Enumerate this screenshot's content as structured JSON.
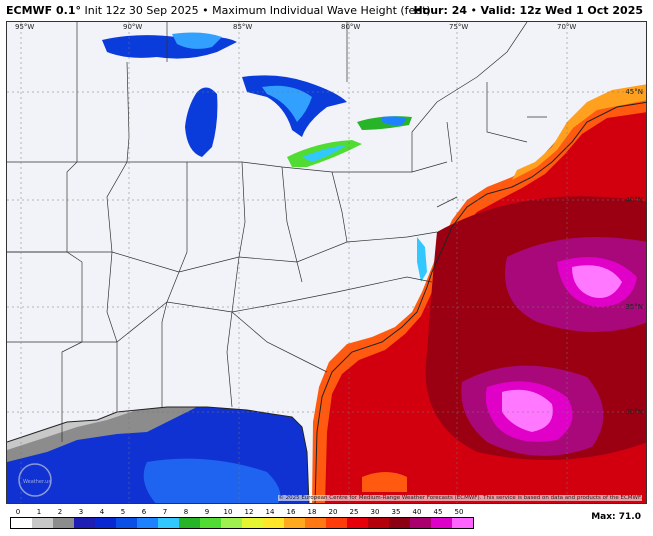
{
  "header": {
    "model": "ECMWF 0.1°",
    "init": "Init 12z 30 Sep 2025",
    "bullet": "•",
    "product": "Maximum Individual Wave Height (feet)",
    "hour_label": "Hour: 24",
    "valid_label": "Valid: 12z Wed 1 Oct 2025"
  },
  "map": {
    "lon_labels": [
      "95°W",
      "90°W",
      "85°W",
      "80°W",
      "75°W",
      "70°W"
    ],
    "lat_labels": [
      "45°N",
      "40°N",
      "35°N",
      "30°N"
    ],
    "copyright": "© 2025 European Centre for Medium-Range Weather Forecasts (ECMWF). This service is based on data and products of the ECMWF.",
    "watermark": "Weather.us"
  },
  "legend": {
    "ticks": [
      "0",
      "1",
      "2",
      "3",
      "4",
      "5",
      "6",
      "7",
      "8",
      "9",
      "10",
      "12",
      "14",
      "16",
      "18",
      "20",
      "25",
      "30",
      "35",
      "40",
      "45",
      "50"
    ],
    "colors": [
      "#ffffff",
      "#c8c8c8",
      "#8c8c8c",
      "#1e1eb4",
      "#0a28d2",
      "#0a50e6",
      "#1e82ff",
      "#32c8ff",
      "#28b428",
      "#50dc32",
      "#a0f050",
      "#e6f532",
      "#ffe628",
      "#ffaa1e",
      "#ff7814",
      "#ff3c0a",
      "#e6000a",
      "#b4000a",
      "#8c0014",
      "#aa006e",
      "#dc00c8",
      "#ff64ff"
    ]
  },
  "max_label": "Max: 71.0"
}
